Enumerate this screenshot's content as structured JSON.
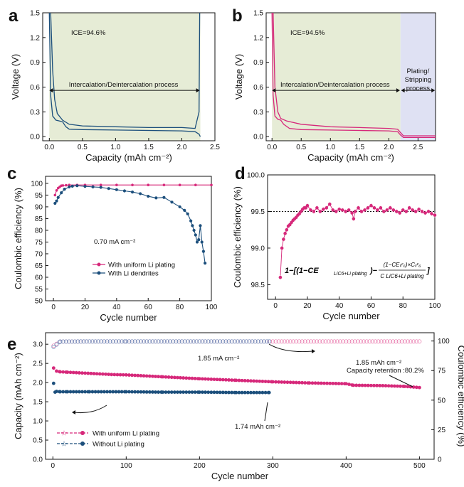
{
  "chart_data": [
    {
      "panel": "a",
      "type": "line",
      "xlabel": "Capacity (mAh cm⁻²)",
      "ylabel": "Voltage (V)",
      "xlim": [
        -0.1,
        2.5
      ],
      "ylim": [
        -0.05,
        1.5
      ],
      "xticks": [
        "0.0",
        "0.5",
        "1.0",
        "1.5",
        "2.0",
        "2.5"
      ],
      "yticks": [
        "0.0",
        "0.3",
        "0.6",
        "0.9",
        "1.2",
        "1.5"
      ],
      "annotation": "ICE=94.6%",
      "process_label": "Intercalation/Deintercalation process",
      "shaded_region": [
        0,
        2.28
      ],
      "shade_color": "#e6ecd6",
      "line_color": "#1c4f7c",
      "series": [
        {
          "role": "charge",
          "x": [
            0.02,
            0.05,
            0.08,
            0.12,
            0.2,
            0.3,
            0.5,
            1.0,
            1.5,
            2.0,
            2.2,
            2.26,
            2.27
          ],
          "y": [
            1.5,
            0.8,
            0.45,
            0.28,
            0.2,
            0.15,
            0.13,
            0.12,
            0.11,
            0.11,
            0.1,
            0.3,
            1.5
          ]
        },
        {
          "role": "discharge",
          "x": [
            0.0,
            0.02,
            0.05,
            0.1,
            0.15,
            0.2,
            0.25,
            0.3,
            0.5,
            1.0,
            1.5,
            2.0,
            2.2,
            2.26,
            2.28
          ],
          "y": [
            1.5,
            0.5,
            0.25,
            0.2,
            0.19,
            0.18,
            0.12,
            0.09,
            0.085,
            0.08,
            0.075,
            0.07,
            0.06,
            0.03,
            0.0
          ]
        }
      ]
    },
    {
      "panel": "b",
      "type": "line",
      "xlabel": "Capacity (mAh cm⁻²)",
      "ylabel": "Voltage (V)",
      "xlim": [
        -0.1,
        2.8
      ],
      "ylim": [
        -0.05,
        1.5
      ],
      "xticks": [
        "0.0",
        "0.5",
        "1.0",
        "1.5",
        "2.0",
        "2.5"
      ],
      "yticks": [
        "0.0",
        "0.3",
        "0.6",
        "0.9",
        "1.2",
        "1.5"
      ],
      "annotation": "ICE=94.5%",
      "process_label_1": "Intercalation/Deintercalation process",
      "process_label_2": [
        "Plating/",
        "Stripping",
        "process"
      ],
      "region_1": [
        0,
        2.2
      ],
      "region_2": [
        2.2,
        2.8
      ],
      "shade_color_1": "#e6ecd6",
      "shade_color_2": "#dfe1f3",
      "line_color": "#d6287a",
      "series": [
        {
          "role": "charge",
          "x": [
            0.02,
            0.05,
            0.1,
            0.15,
            0.25,
            0.5,
            1.0,
            1.5,
            2.0,
            2.15,
            2.2,
            2.25,
            2.8
          ],
          "y": [
            1.5,
            0.6,
            0.3,
            0.22,
            0.19,
            0.15,
            0.12,
            0.11,
            0.1,
            0.09,
            0.05,
            0.01,
            0.01
          ]
        },
        {
          "role": "discharge",
          "x": [
            0.0,
            0.02,
            0.05,
            0.1,
            0.15,
            0.2,
            0.3,
            0.5,
            1.0,
            1.5,
            2.0,
            2.15,
            2.2,
            2.25,
            2.8
          ],
          "y": [
            1.5,
            0.5,
            0.25,
            0.21,
            0.2,
            0.15,
            0.1,
            0.085,
            0.08,
            0.075,
            0.07,
            0.06,
            0.02,
            -0.01,
            -0.01
          ]
        }
      ]
    },
    {
      "panel": "c",
      "type": "line",
      "xlabel": "Cycle number",
      "ylabel": "Coulombic efficiency (%)",
      "xlim": [
        -5,
        100
      ],
      "ylim": [
        50,
        103
      ],
      "xticks": [
        "0",
        "20",
        "40",
        "60",
        "80",
        "100"
      ],
      "yticks": [
        "50",
        "55",
        "60",
        "65",
        "70",
        "75",
        "80",
        "85",
        "90",
        "95",
        "100"
      ],
      "annotation": "0.70 mA cm⁻²",
      "legend": [
        "With uniform Li plating",
        "With Li dendrites"
      ],
      "series": [
        {
          "name": "With uniform Li plating",
          "color": "#d6287a",
          "x": [
            1,
            2,
            3,
            4,
            5,
            6,
            8,
            10,
            15,
            20,
            30,
            40,
            50,
            60,
            70,
            80,
            90,
            100
          ],
          "y": [
            95,
            97,
            98,
            98.5,
            99,
            99.1,
            99.2,
            99.3,
            99.3,
            99.3,
            99.3,
            99.3,
            99.3,
            99.3,
            99.3,
            99.3,
            99.3,
            99.3
          ]
        },
        {
          "name": "With Li dendrites",
          "color": "#1c4f7c",
          "x": [
            1,
            2,
            3,
            5,
            7,
            10,
            12,
            15,
            20,
            25,
            30,
            35,
            40,
            45,
            50,
            55,
            60,
            65,
            70,
            75,
            80,
            83,
            85,
            87,
            88,
            89,
            90,
            91,
            92,
            93,
            94,
            95,
            96
          ],
          "y": [
            91.5,
            92.5,
            94,
            96,
            97.5,
            98.5,
            98.8,
            99,
            98.7,
            98.5,
            98.3,
            97.8,
            97.3,
            96.8,
            96.3,
            95.6,
            94.5,
            93.8,
            94,
            92,
            90,
            88.5,
            87,
            84,
            82,
            80,
            78,
            75,
            76,
            82,
            75,
            71,
            66
          ]
        }
      ]
    },
    {
      "panel": "d",
      "type": "scatter",
      "xlabel": "Cycle number",
      "ylabel": "Coulombic efficiency (%)",
      "xlim": [
        -5,
        100
      ],
      "ylim": [
        98.3,
        100
      ],
      "xticks": [
        "0",
        "20",
        "40",
        "60",
        "80",
        "100"
      ],
      "yticks": [
        "98.5",
        "99.0",
        "99.5",
        "100.0"
      ],
      "reference_line": 99.5,
      "formula": "1−[(1−CE_LiC6+Li plating)−(1−CE_LiC6)×C_LiC6 / C_LiC6+Li plating]",
      "series": [
        {
          "color": "#d6287a",
          "x": [
            3,
            4,
            5,
            6,
            7,
            8,
            9,
            10,
            11,
            12,
            13,
            14,
            15,
            16,
            17,
            18,
            19,
            20,
            22,
            24,
            26,
            28,
            30,
            32,
            34,
            36,
            38,
            40,
            42,
            44,
            46,
            48,
            49,
            50,
            52,
            54,
            56,
            58,
            60,
            62,
            64,
            66,
            68,
            70,
            72,
            74,
            76,
            78,
            80,
            82,
            84,
            86,
            88,
            90,
            92,
            94,
            96,
            98,
            100
          ],
          "y": [
            98.6,
            99.0,
            99.12,
            99.2,
            99.25,
            99.3,
            99.32,
            99.35,
            99.38,
            99.4,
            99.42,
            99.45,
            99.47,
            99.5,
            99.53,
            99.55,
            99.55,
            99.58,
            99.52,
            99.5,
            99.55,
            99.5,
            99.53,
            99.55,
            99.6,
            99.52,
            99.5,
            99.53,
            99.52,
            99.5,
            99.52,
            99.48,
            99.4,
            99.5,
            99.55,
            99.5,
            99.52,
            99.55,
            99.58,
            99.55,
            99.52,
            99.55,
            99.5,
            99.52,
            99.55,
            99.52,
            99.5,
            99.48,
            99.52,
            99.5,
            99.55,
            99.52,
            99.5,
            99.53,
            99.5,
            99.48,
            99.5,
            99.47,
            99.45
          ]
        }
      ]
    },
    {
      "panel": "e",
      "type": "scatter",
      "xlabel": "Cycle number",
      "ylabel": "Capacity (mAh cm⁻²)",
      "ylabel_right": "Coulombic efficiency (%)",
      "xlim": [
        -10,
        520
      ],
      "ylim": [
        0,
        3.3
      ],
      "ylim_right": [
        0,
        107
      ],
      "xticks": [
        "0",
        "100",
        "200",
        "300",
        "400",
        "500"
      ],
      "yticks": [
        "0.0",
        "0.5",
        "1.0",
        "1.5",
        "2.0",
        "2.5",
        "3.0"
      ],
      "yticks_right": [
        "0",
        "25",
        "50",
        "75",
        "100"
      ],
      "annotations": [
        "1.85 mA cm⁻²",
        "1.85 mAh cm⁻²",
        "Capacity retention :80.2%",
        "1.74 mAh cm⁻²"
      ],
      "legend": [
        "With uniform Li plating",
        "Without Li plating"
      ],
      "series": [
        {
          "name": "With uniform Li plating",
          "metric": "capacity",
          "color": "#d6287a",
          "x": [
            1,
            5,
            10,
            20,
            40,
            60,
            80,
            100,
            150,
            200,
            250,
            300,
            350,
            400,
            410,
            450,
            480,
            500
          ],
          "y": [
            2.38,
            2.3,
            2.28,
            2.27,
            2.25,
            2.23,
            2.21,
            2.2,
            2.15,
            2.1,
            2.06,
            2.02,
            1.99,
            1.97,
            1.93,
            1.92,
            1.9,
            1.87
          ]
        },
        {
          "name": "Without Li plating",
          "metric": "capacity",
          "color": "#1c4f7c",
          "x": [
            1,
            3,
            5,
            10,
            20,
            50,
            100,
            150,
            200,
            250,
            295
          ],
          "y": [
            1.98,
            1.75,
            1.77,
            1.76,
            1.76,
            1.76,
            1.76,
            1.75,
            1.75,
            1.74,
            1.74
          ]
        },
        {
          "name": "With uniform Li plating",
          "metric": "coulombic_efficiency",
          "color": "#d6287a",
          "x": [
            1,
            10,
            50,
            100,
            200,
            300,
            400,
            500
          ],
          "y": [
            96,
            99.5,
            99.6,
            99.6,
            99.6,
            99.6,
            99.6,
            99.6
          ]
        },
        {
          "name": "Without Li plating",
          "metric": "coulombic_efficiency",
          "color": "#1c4f7c",
          "x": [
            1,
            10,
            50,
            100,
            200,
            295
          ],
          "y": [
            95,
            99.5,
            99.6,
            99.6,
            99.6,
            99.6
          ]
        }
      ]
    }
  ]
}
